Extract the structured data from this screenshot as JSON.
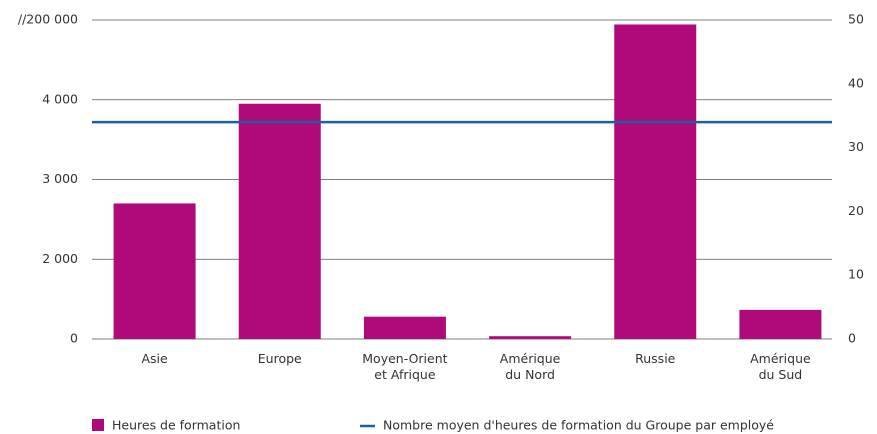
{
  "chart_data": {
    "type": "bar",
    "categories": [
      "Asie",
      "Europe",
      "Moyen-Orient\net Afrique",
      "Amérique\ndu Nord",
      "Russie",
      "Amérique\ndu Sud"
    ],
    "series": [
      {
        "name": "Heures de formation",
        "color": "#b0097a",
        "values": [
          2700,
          3950,
          560,
          70,
          189000,
          730
        ]
      }
    ],
    "reference_line": {
      "name": "Nombre moyen d'heures de formation du Groupe par employé",
      "color": "#1f5fa6",
      "value": 34,
      "axis": "y2"
    },
    "ylim": [
      0,
      200000
    ],
    "yticks": [
      0,
      {
        "value": 2000,
        "label": "2 000"
      },
      {
        "value": 3000,
        "label": "3 000"
      },
      {
        "value": 4000,
        "label": "4 000"
      },
      {
        "value": 200000,
        "label": "//200 000"
      }
    ],
    "y2lim": [
      0,
      50
    ],
    "y2ticks": [
      0,
      10,
      20,
      30,
      40,
      50
    ],
    "grid": true
  }
}
